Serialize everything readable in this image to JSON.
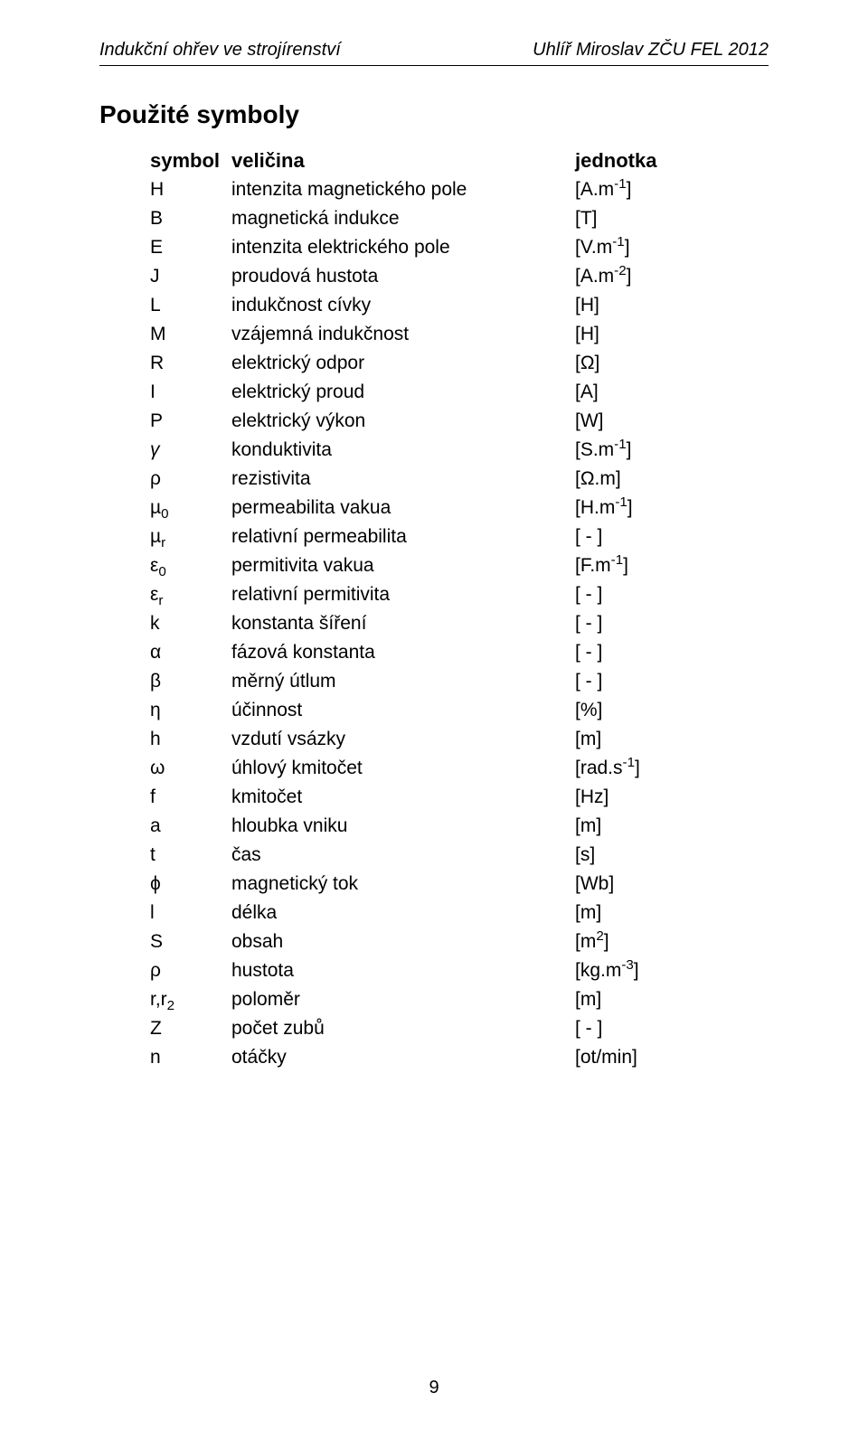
{
  "header": {
    "left": "Indukční ohřev ve strojírenství",
    "right": "Uhlíř Miroslav ZČU FEL 2012"
  },
  "section_title": "Použité symboly",
  "columns": {
    "symbol": "symbol",
    "quantity": "veličina",
    "unit": "jednotka"
  },
  "rows": [
    {
      "sym": "H",
      "sub": "",
      "qty": "intenzita magnetického pole",
      "unit_pre": "[A.m",
      "unit_sup": "-1",
      "unit_post": "]"
    },
    {
      "sym": "B",
      "sub": "",
      "qty": "magnetická indukce",
      "unit_pre": "[T]",
      "unit_sup": "",
      "unit_post": ""
    },
    {
      "sym": "E",
      "sub": "",
      "qty": "intenzita elektrického pole",
      "unit_pre": "[V.m",
      "unit_sup": "-1",
      "unit_post": "]"
    },
    {
      "sym": "J",
      "sub": "",
      "qty": "proudová hustota",
      "unit_pre": "[A.m",
      "unit_sup": "-2",
      "unit_post": "]"
    },
    {
      "sym": "L",
      "sub": "",
      "qty": "indukčnost cívky",
      "unit_pre": "[H]",
      "unit_sup": "",
      "unit_post": ""
    },
    {
      "sym": "M",
      "sub": "",
      "qty": "vzájemná indukčnost",
      "unit_pre": "[H]",
      "unit_sup": "",
      "unit_post": ""
    },
    {
      "sym": "R",
      "sub": "",
      "qty": "elektrický odpor",
      "unit_pre": "[Ω]",
      "unit_sup": "",
      "unit_post": ""
    },
    {
      "sym": "I",
      "sub": "",
      "qty": "elektrický proud",
      "unit_pre": "[A]",
      "unit_sup": "",
      "unit_post": ""
    },
    {
      "sym": "P",
      "sub": "",
      "qty": "elektrický výkon",
      "unit_pre": "[W]",
      "unit_sup": "",
      "unit_post": ""
    },
    {
      "sym": "γ",
      "sub": "",
      "qty": "konduktivita",
      "unit_pre": "[S.m",
      "unit_sup": "-1",
      "unit_post": "]",
      "sym_italic": true
    },
    {
      "sym": "ρ",
      "sub": "",
      "qty": "rezistivita",
      "unit_pre": "[Ω.m]",
      "unit_sup": "",
      "unit_post": ""
    },
    {
      "sym": "µ",
      "sub": "0",
      "qty": "permeabilita vakua",
      "unit_pre": "[H.m",
      "unit_sup": "-1",
      "unit_post": "]"
    },
    {
      "sym": "µ",
      "sub": "r",
      "qty": "relativní permeabilita",
      "unit_pre": "[ - ]",
      "unit_sup": "",
      "unit_post": ""
    },
    {
      "sym": "ε",
      "sub": "0",
      "qty": "permitivita vakua",
      "unit_pre": "[F.m",
      "unit_sup": "-1",
      "unit_post": "]"
    },
    {
      "sym": "ε",
      "sub": "r",
      "qty": "relativní permitivita",
      "unit_pre": "[ - ]",
      "unit_sup": "",
      "unit_post": ""
    },
    {
      "sym": "k",
      "sub": "",
      "qty": "konstanta šíření",
      "unit_pre": "[ - ]",
      "unit_sup": "",
      "unit_post": ""
    },
    {
      "sym": "α",
      "sub": "",
      "qty": "fázová konstanta",
      "unit_pre": "[ - ]",
      "unit_sup": "",
      "unit_post": ""
    },
    {
      "sym": "β",
      "sub": "",
      "qty": "měrný útlum",
      "unit_pre": "[ - ]",
      "unit_sup": "",
      "unit_post": ""
    },
    {
      "sym": "η",
      "sub": "",
      "qty": "účinnost",
      "unit_pre": "[%]",
      "unit_sup": "",
      "unit_post": ""
    },
    {
      "sym": "h",
      "sub": "",
      "qty": "vzdutí vsázky",
      "unit_pre": "[m]",
      "unit_sup": "",
      "unit_post": ""
    },
    {
      "sym": "ω",
      "sub": "",
      "qty": "úhlový kmitočet",
      "unit_pre": "[rad.s",
      "unit_sup": "-1",
      "unit_post": "]"
    },
    {
      "sym": "f",
      "sub": "",
      "qty": "kmitočet",
      "unit_pre": "[Hz]",
      "unit_sup": "",
      "unit_post": ""
    },
    {
      "sym": "a",
      "sub": "",
      "qty": "hloubka vniku",
      "unit_pre": "[m]",
      "unit_sup": "",
      "unit_post": ""
    },
    {
      "sym": "t",
      "sub": "",
      "qty": "čas",
      "unit_pre": "[s]",
      "unit_sup": "",
      "unit_post": ""
    },
    {
      "sym": "ϕ",
      "sub": "",
      "qty": "magnetický tok",
      "unit_pre": "[Wb]",
      "unit_sup": "",
      "unit_post": ""
    },
    {
      "sym": "l",
      "sub": "",
      "qty": "délka",
      "unit_pre": "[m]",
      "unit_sup": "",
      "unit_post": ""
    },
    {
      "sym": "S",
      "sub": "",
      "qty": "obsah",
      "unit_pre": "[m",
      "unit_sup": "2",
      "unit_post": "]"
    },
    {
      "sym": "ρ",
      "sub": "",
      "qty": "hustota",
      "unit_pre": "[kg.m",
      "unit_sup": "-3",
      "unit_post": "]"
    },
    {
      "sym": "r,r",
      "sub": "2",
      "qty": "poloměr",
      "unit_pre": "[m]",
      "unit_sup": "",
      "unit_post": ""
    },
    {
      "sym": "Z",
      "sub": "",
      "qty": "počet zubů",
      "unit_pre": "[ - ]",
      "unit_sup": "",
      "unit_post": ""
    },
    {
      "sym": "n",
      "sub": "",
      "qty": "otáčky",
      "unit_pre": "[ot/min]",
      "unit_sup": "",
      "unit_post": ""
    }
  ],
  "page_number": "9"
}
